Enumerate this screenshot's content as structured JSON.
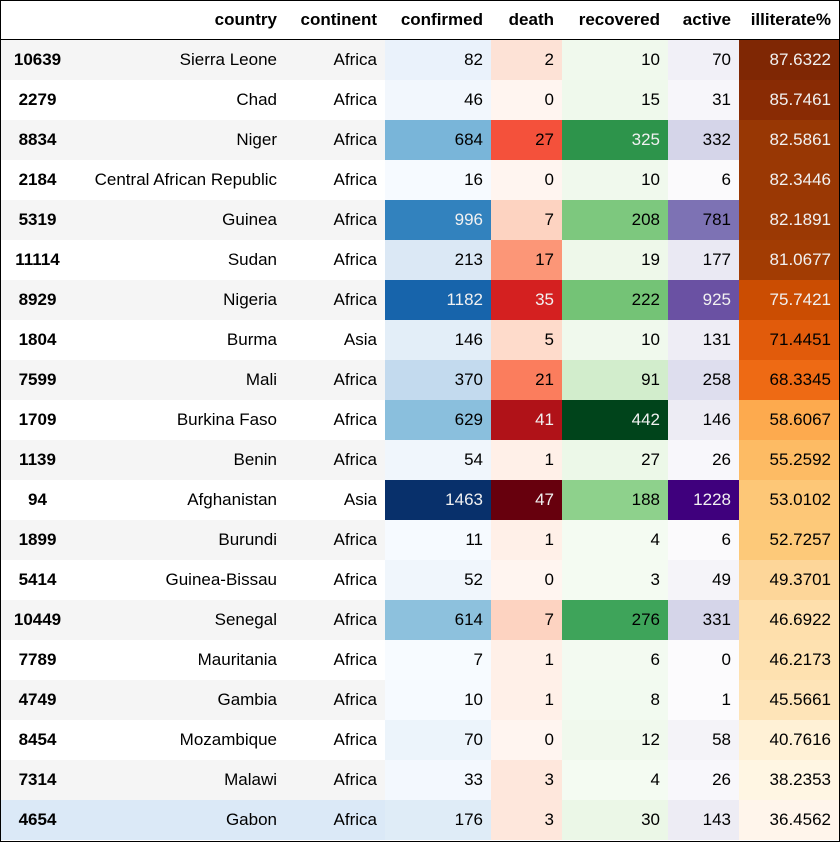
{
  "columns": [
    "",
    "country",
    "continent",
    "confirmed",
    "death",
    "recovered",
    "active",
    "illiterate%"
  ],
  "rows": [
    {
      "id": "10639",
      "country": "Sierra Leone",
      "continent": "Africa",
      "confirmed": "82",
      "death": "2",
      "recovered": "10",
      "active": "70",
      "illiterate": "87.6322",
      "colors": {
        "confirmed": "#eaf2fb",
        "death": "#fde2d6",
        "recovered": "#f0f9ed",
        "active": "#f1f0f7",
        "illiterate": "#7f2704"
      },
      "textdark": {
        "illiterate": false
      }
    },
    {
      "id": "2279",
      "country": "Chad",
      "continent": "Africa",
      "confirmed": "46",
      "death": "0",
      "recovered": "15",
      "active": "31",
      "illiterate": "85.7461",
      "colors": {
        "confirmed": "#f2f7fd",
        "death": "#fff5f0",
        "recovered": "#eff9ec",
        "active": "#f7f6fa",
        "illiterate": "#892b04"
      },
      "textdark": {
        "illiterate": false
      }
    },
    {
      "id": "8834",
      "country": "Niger",
      "continent": "Africa",
      "confirmed": "684",
      "death": "27",
      "recovered": "325",
      "active": "332",
      "illiterate": "82.5861",
      "colors": {
        "confirmed": "#79b5d9",
        "death": "#f4513b",
        "recovered": "#2d944b",
        "active": "#d5d5e9",
        "illiterate": "#983704"
      },
      "textdark": {
        "illiterate": false
      }
    },
    {
      "id": "2184",
      "country": "Central African Republic",
      "continent": "Africa",
      "confirmed": "16",
      "death": "0",
      "recovered": "10",
      "active": "6",
      "illiterate": "82.3446",
      "colors": {
        "confirmed": "#f6faff",
        "death": "#fff5f0",
        "recovered": "#f0f9ed",
        "active": "#fbfafc",
        "illiterate": "#9a3804"
      },
      "textdark": {
        "illiterate": false
      }
    },
    {
      "id": "5319",
      "country": "Guinea",
      "continent": "Africa",
      "confirmed": "996",
      "death": "7",
      "recovered": "208",
      "active": "781",
      "illiterate": "82.1891",
      "colors": {
        "confirmed": "#3282be",
        "death": "#fdd3c1",
        "recovered": "#7dc87e",
        "active": "#7d72b4",
        "illiterate": "#9b3904"
      },
      "textdark": {
        "illiterate": false
      }
    },
    {
      "id": "11114",
      "country": "Sudan",
      "continent": "Africa",
      "confirmed": "213",
      "death": "17",
      "recovered": "19",
      "active": "177",
      "illiterate": "81.0677",
      "colors": {
        "confirmed": "#dbe8f5",
        "death": "#fc9677",
        "recovered": "#eef8ea",
        "active": "#eae9f3",
        "illiterate": "#a23c03"
      },
      "textdark": {
        "illiterate": false
      }
    },
    {
      "id": "8929",
      "country": "Nigeria",
      "continent": "Africa",
      "confirmed": "1182",
      "death": "35",
      "recovered": "222",
      "active": "925",
      "illiterate": "75.7421",
      "colors": {
        "confirmed": "#1764ab",
        "death": "#d42020",
        "recovered": "#74c376",
        "active": "#6a51a3",
        "illiterate": "#cb4d02"
      },
      "textdark": {
        "illiterate": false
      }
    },
    {
      "id": "1804",
      "country": "Burma",
      "continent": "Asia",
      "confirmed": "146",
      "death": "5",
      "recovered": "10",
      "active": "131",
      "illiterate": "71.4451",
      "colors": {
        "confirmed": "#e3eef8",
        "death": "#fedbcb",
        "recovered": "#f0f9ed",
        "active": "#eeedf5",
        "illiterate": "#e15b0b"
      },
      "textdark": {
        "illiterate": false
      }
    },
    {
      "id": "7599",
      "country": "Mali",
      "continent": "Africa",
      "confirmed": "370",
      "death": "21",
      "recovered": "91",
      "active": "258",
      "illiterate": "68.3345",
      "colors": {
        "confirmed": "#c3daee",
        "death": "#fb7d5d",
        "recovered": "#d2edcc",
        "active": "#dedeee",
        "illiterate": "#ee6a14"
      },
      "textdark": {
        "illiterate": false
      }
    },
    {
      "id": "1709",
      "country": "Burkina Faso",
      "continent": "Africa",
      "confirmed": "629",
      "death": "41",
      "recovered": "442",
      "active": "146",
      "illiterate": "58.6067",
      "colors": {
        "confirmed": "#8abfdd",
        "death": "#b01218",
        "recovered": "#00441b",
        "active": "#edecf4",
        "illiterate": "#fdaa4e"
      },
      "textdark": {
        "illiterate": true
      }
    },
    {
      "id": "1139",
      "country": "Benin",
      "continent": "Africa",
      "confirmed": "54",
      "death": "1",
      "recovered": "27",
      "active": "26",
      "illiterate": "55.2592",
      "colors": {
        "confirmed": "#f0f6fc",
        "death": "#fff0e8",
        "recovered": "#ecf8e8",
        "active": "#f8f7fb",
        "illiterate": "#fdbb64"
      },
      "textdark": {
        "illiterate": true
      }
    },
    {
      "id": "94",
      "country": "Afghanistan",
      "continent": "Asia",
      "confirmed": "1463",
      "death": "47",
      "recovered": "188",
      "active": "1228",
      "illiterate": "53.0102",
      "colors": {
        "confirmed": "#08306b",
        "death": "#67000d",
        "recovered": "#8ed18c",
        "active": "#3f007d",
        "illiterate": "#fdc777"
      },
      "textdark": {
        "illiterate": true
      }
    },
    {
      "id": "1899",
      "country": "Burundi",
      "continent": "Africa",
      "confirmed": "11",
      "death": "1",
      "recovered": "4",
      "active": "6",
      "illiterate": "52.7257",
      "colors": {
        "confirmed": "#f6faff",
        "death": "#fff0e8",
        "recovered": "#f4fbf2",
        "active": "#fbfafc",
        "illiterate": "#fdc979"
      },
      "textdark": {
        "illiterate": true
      }
    },
    {
      "id": "5414",
      "country": "Guinea-Bissau",
      "continent": "Africa",
      "confirmed": "52",
      "death": "0",
      "recovered": "3",
      "active": "49",
      "illiterate": "49.3701",
      "colors": {
        "confirmed": "#f0f6fc",
        "death": "#fff5f0",
        "recovered": "#f4fbf2",
        "active": "#f5f4f9",
        "illiterate": "#fdd699"
      },
      "textdark": {
        "illiterate": true
      }
    },
    {
      "id": "10449",
      "country": "Senegal",
      "continent": "Africa",
      "confirmed": "614",
      "death": "7",
      "recovered": "276",
      "active": "331",
      "illiterate": "46.6922",
      "colors": {
        "confirmed": "#8dc1dd",
        "death": "#fdd3c1",
        "recovered": "#3ea45a",
        "active": "#d5d5e9",
        "illiterate": "#fedfac"
      },
      "textdark": {
        "illiterate": true
      }
    },
    {
      "id": "7789",
      "country": "Mauritania",
      "continent": "Africa",
      "confirmed": "7",
      "death": "1",
      "recovered": "6",
      "active": "0",
      "illiterate": "46.2173",
      "colors": {
        "confirmed": "#f7fbff",
        "death": "#fff0e8",
        "recovered": "#f3faf1",
        "active": "#fcfbfd",
        "illiterate": "#fee1b0"
      },
      "textdark": {
        "illiterate": true
      }
    },
    {
      "id": "4749",
      "country": "Gambia",
      "continent": "Africa",
      "confirmed": "10",
      "death": "1",
      "recovered": "8",
      "active": "1",
      "illiterate": "45.5661",
      "colors": {
        "confirmed": "#f6faff",
        "death": "#fff0e8",
        "recovered": "#f2faf0",
        "active": "#fcfbfd",
        "illiterate": "#fee4b8"
      },
      "textdark": {
        "illiterate": true
      }
    },
    {
      "id": "8454",
      "country": "Mozambique",
      "continent": "Africa",
      "confirmed": "70",
      "death": "0",
      "recovered": "12",
      "active": "58",
      "illiterate": "40.7616",
      "colors": {
        "confirmed": "#ecf4fb",
        "death": "#fff5f0",
        "recovered": "#f0f9ed",
        "active": "#f4f3f8",
        "illiterate": "#fff1d6"
      },
      "textdark": {
        "illiterate": true
      }
    },
    {
      "id": "7314",
      "country": "Malawi",
      "continent": "Africa",
      "confirmed": "33",
      "death": "3",
      "recovered": "4",
      "active": "26",
      "illiterate": "38.2353",
      "colors": {
        "confirmed": "#f3f8fe",
        "death": "#fee7dc",
        "recovered": "#f4fbf2",
        "active": "#f8f7fb",
        "illiterate": "#fff6e3"
      },
      "textdark": {
        "illiterate": true
      }
    },
    {
      "id": "4654",
      "country": "Gabon",
      "continent": "Africa",
      "confirmed": "176",
      "death": "3",
      "recovered": "30",
      "active": "143",
      "illiterate": "36.4562",
      "colors": {
        "confirmed": "#dfecf7",
        "death": "#fee7dc",
        "recovered": "#ebf7e7",
        "active": "#edecf4",
        "illiterate": "#fff5eb"
      },
      "textdark": {
        "illiterate": true
      }
    }
  ]
}
